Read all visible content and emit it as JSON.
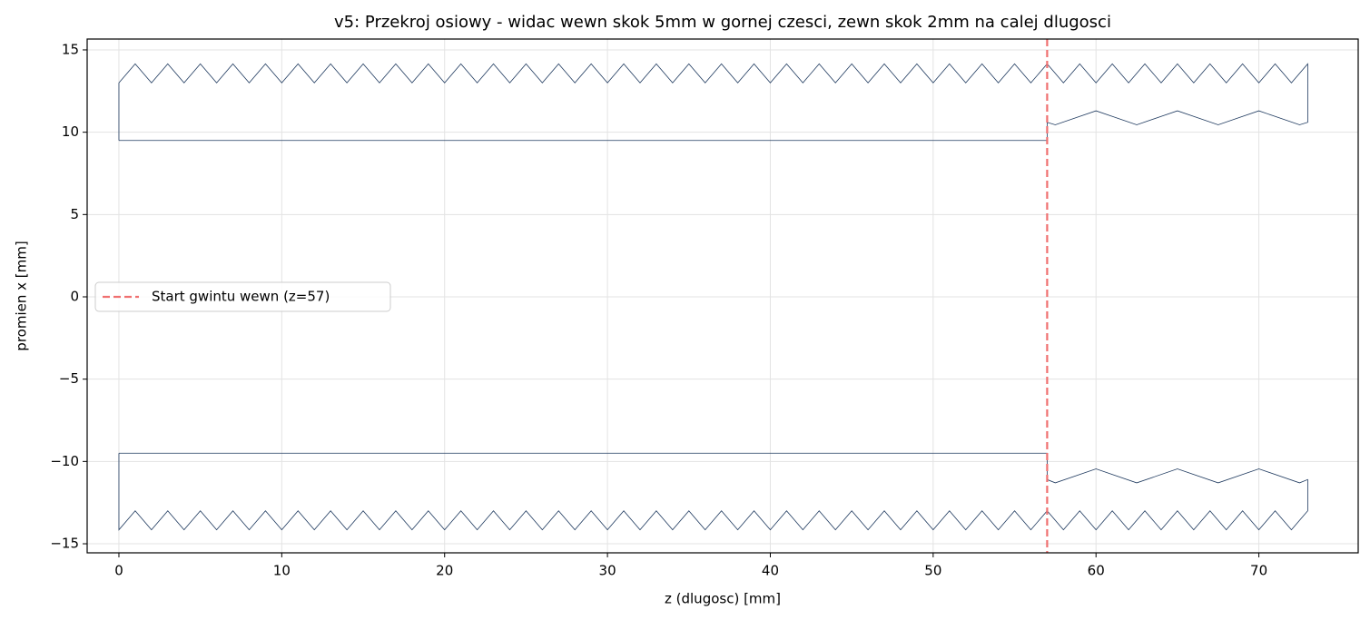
{
  "chart_data": {
    "type": "line",
    "title": "v5: Przekroj osiowy - widac wewn skok 5mm w gornej czesci, zewn skok 2mm na calej dlugosci",
    "xlabel": "z (dlugosc) [mm]",
    "ylabel": "promien x [mm]",
    "xlim": [
      -1.95,
      76.1
    ],
    "ylim": [
      -15.55,
      15.66
    ],
    "xticks": [
      0,
      10,
      20,
      30,
      40,
      50,
      60,
      70
    ],
    "yticks": [
      {
        "value": -15,
        "label": "−15"
      },
      {
        "value": -10,
        "label": "−10"
      },
      {
        "value": -5,
        "label": "−5"
      },
      0,
      5,
      10,
      15
    ],
    "grid": true,
    "legend": "center left",
    "series": [
      {
        "color": "#1f3a5f",
        "x": [
          0,
          0,
          1,
          2,
          3,
          4,
          5,
          6,
          7,
          8,
          9,
          10,
          11,
          12,
          13,
          14,
          15,
          16,
          17,
          18,
          19,
          20,
          21,
          22,
          23,
          24,
          25,
          26,
          27,
          28,
          29,
          30,
          31,
          32,
          33,
          34,
          35,
          36,
          37,
          38,
          39,
          40,
          41,
          42,
          43,
          44,
          45,
          46,
          47,
          48,
          49,
          50,
          51,
          52,
          53,
          54,
          55,
          56,
          57,
          58,
          59,
          60,
          61,
          62,
          63,
          64,
          65,
          66,
          67,
          68,
          69,
          70,
          71,
          72,
          73,
          73,
          72.5,
          70,
          67.5,
          65,
          62.5,
          60,
          57.5,
          57,
          57,
          0
        ],
        "y": [
          9.5,
          13,
          14.15,
          13,
          14.15,
          13,
          14.15,
          13,
          14.15,
          13,
          14.15,
          13,
          14.15,
          13,
          14.15,
          13,
          14.15,
          13,
          14.15,
          13,
          14.15,
          13,
          14.15,
          13,
          14.15,
          13,
          14.15,
          13,
          14.15,
          13,
          14.15,
          13,
          14.15,
          13,
          14.15,
          13,
          14.15,
          13,
          14.15,
          13,
          14.15,
          13,
          14.15,
          13,
          14.15,
          13,
          14.15,
          13,
          14.15,
          13,
          14.15,
          13,
          14.15,
          13,
          14.15,
          13,
          14.15,
          13,
          14.15,
          13,
          14.15,
          13,
          14.15,
          13,
          14.15,
          13,
          14.15,
          13,
          14.15,
          13,
          14.15,
          13,
          14.15,
          13,
          14.15,
          10.6,
          10.45,
          11.3,
          10.45,
          11.3,
          10.45,
          11.3,
          10.45,
          10.6,
          9.5,
          9.5
        ]
      },
      {
        "color": "#1f3a5f",
        "x": [
          0,
          0,
          1,
          2,
          3,
          4,
          5,
          6,
          7,
          8,
          9,
          10,
          11,
          12,
          13,
          14,
          15,
          16,
          17,
          18,
          19,
          20,
          21,
          22,
          23,
          24,
          25,
          26,
          27,
          28,
          29,
          30,
          31,
          32,
          33,
          34,
          35,
          36,
          37,
          38,
          39,
          40,
          41,
          42,
          43,
          44,
          45,
          46,
          47,
          48,
          49,
          50,
          51,
          52,
          53,
          54,
          55,
          56,
          57,
          58,
          59,
          60,
          61,
          62,
          63,
          64,
          65,
          66,
          67,
          68,
          69,
          70,
          71,
          72,
          73,
          73,
          72.5,
          70,
          67.5,
          65,
          62.5,
          60,
          57.5,
          57,
          57,
          0
        ],
        "y": [
          -9.5,
          -14.15,
          -13,
          -14.15,
          -13,
          -14.15,
          -13,
          -14.15,
          -13,
          -14.15,
          -13,
          -14.15,
          -13,
          -14.15,
          -13,
          -14.15,
          -13,
          -14.15,
          -13,
          -14.15,
          -13,
          -14.15,
          -13,
          -14.15,
          -13,
          -14.15,
          -13,
          -14.15,
          -13,
          -14.15,
          -13,
          -14.15,
          -13,
          -14.15,
          -13,
          -14.15,
          -13,
          -14.15,
          -13,
          -14.15,
          -13,
          -14.15,
          -13,
          -14.15,
          -13,
          -14.15,
          -13,
          -14.15,
          -13,
          -14.15,
          -13,
          -14.15,
          -13,
          -14.15,
          -13,
          -14.15,
          -13,
          -14.15,
          -13,
          -14.15,
          -13,
          -14.15,
          -13,
          -14.15,
          -13,
          -14.15,
          -13,
          -14.15,
          -13,
          -14.15,
          -13,
          -14.15,
          -13,
          -14.15,
          -13,
          -11.1,
          -11.3,
          -10.45,
          -11.3,
          -10.45,
          -11.3,
          -10.45,
          -11.3,
          -11.1,
          -9.5,
          -9.5
        ]
      }
    ],
    "vlines": [
      {
        "x": 57,
        "name": "Start gwintu wewn (z=57)",
        "color": "#f07070"
      }
    ]
  }
}
